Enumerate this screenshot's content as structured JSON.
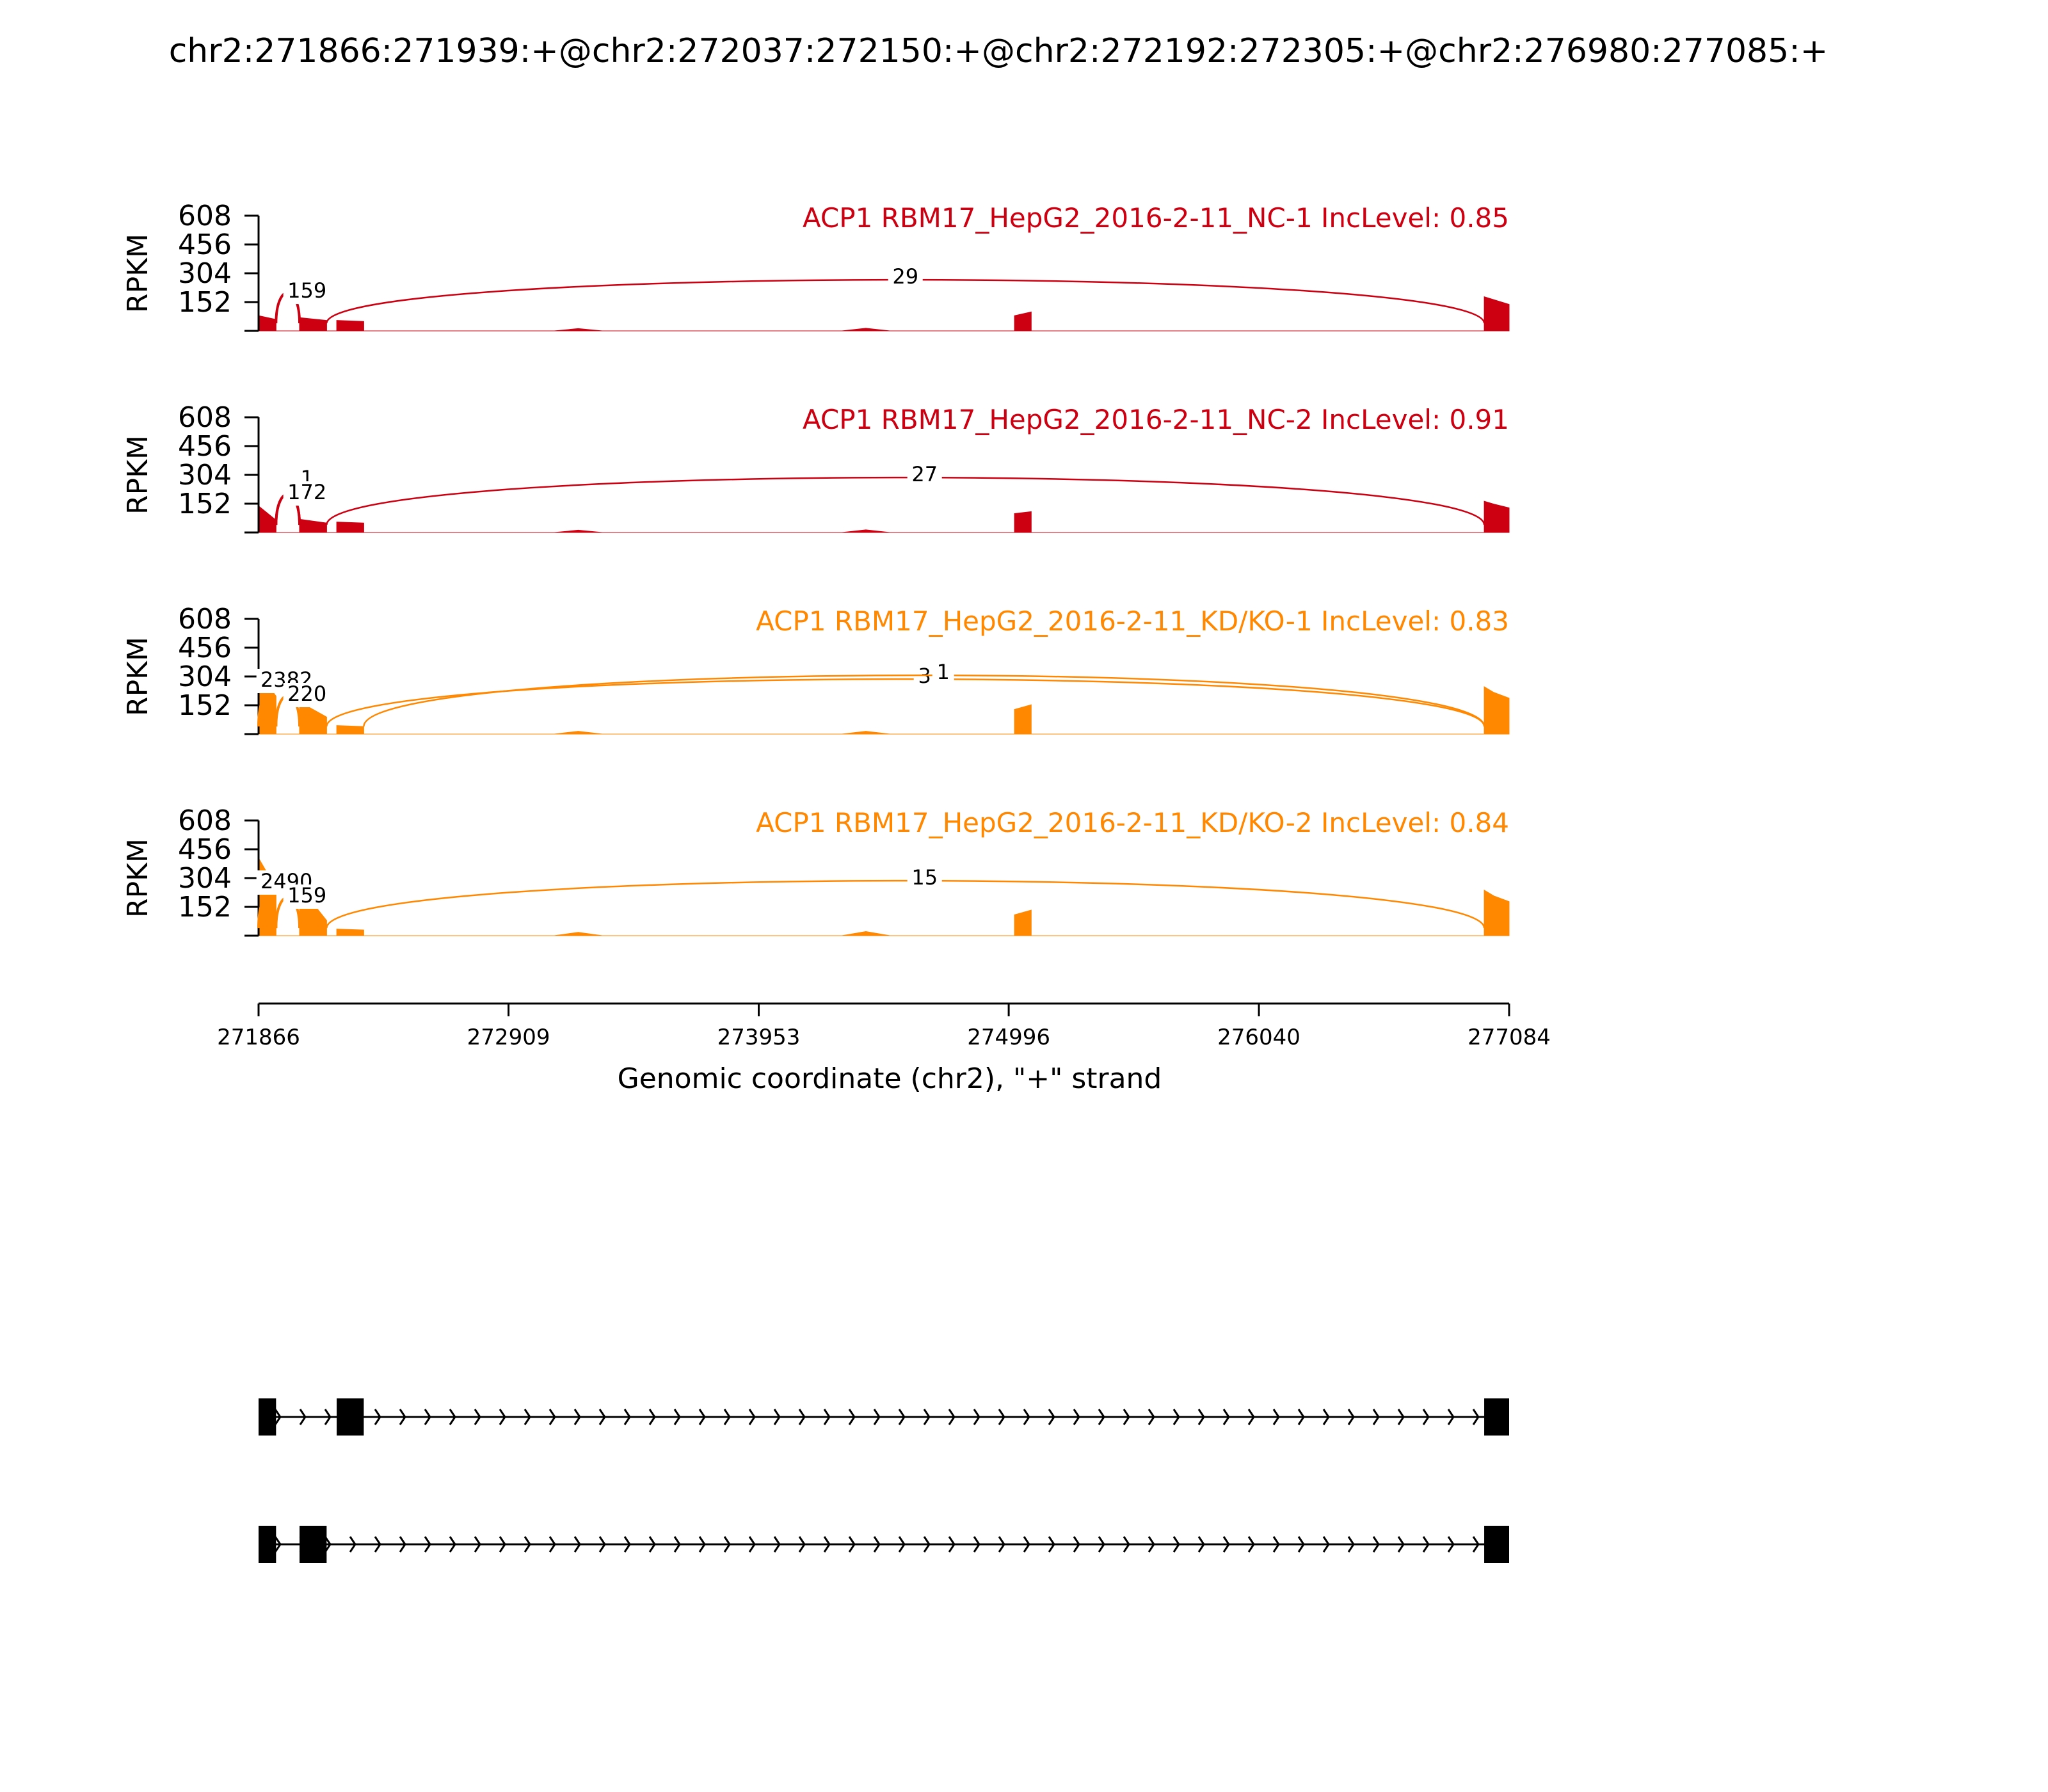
{
  "title": "chr2:271866:271939:+@chr2:272037:272150:+@chr2:272192:272305:+@chr2:276980:277085:+",
  "colors": {
    "nc": "#cc0011",
    "kd": "#ff8800",
    "gene": "#000000"
  },
  "chart_data": {
    "type": "sashimi",
    "x_range": [
      271866,
      277084
    ],
    "x_ticks": [
      271866,
      272909,
      273953,
      274996,
      276040,
      277084
    ],
    "xlabel": "Genomic coordinate (chr2), \"+\" strand",
    "ylabel": "RPKM",
    "y_ticks": [
      152,
      304,
      456,
      608
    ],
    "ylim": [
      0,
      608
    ],
    "samples": [
      {
        "title": "ACP1 RBM17_HepG2_2016-2-11_NC-1 IncLevel: 0.85",
        "group": "nc",
        "coverage": [
          [
            271866,
            80
          ],
          [
            271939,
            60
          ],
          [
            271939,
            0
          ],
          [
            272037,
            0
          ],
          [
            272037,
            70
          ],
          [
            272150,
            55
          ],
          [
            272150,
            0
          ],
          [
            272192,
            0
          ],
          [
            272192,
            55
          ],
          [
            272305,
            50
          ],
          [
            272305,
            0
          ],
          [
            273100,
            0
          ],
          [
            273200,
            12
          ],
          [
            273300,
            0
          ],
          [
            274300,
            0
          ],
          [
            274400,
            14
          ],
          [
            274500,
            0
          ],
          [
            275020,
            0
          ],
          [
            275020,
            80
          ],
          [
            275090,
            100
          ],
          [
            275090,
            0
          ],
          [
            276980,
            0
          ],
          [
            276980,
            180
          ],
          [
            277020,
            165
          ],
          [
            277084,
            140
          ]
        ],
        "junctions": [
          {
            "start": 271939,
            "end": 272037,
            "count": "159"
          },
          {
            "start": 272150,
            "end": 276980,
            "count": "29"
          }
        ]
      },
      {
        "title": "ACP1 RBM17_HepG2_2016-2-11_NC-2 IncLevel: 0.91",
        "group": "nc",
        "coverage": [
          [
            271866,
            140
          ],
          [
            271939,
            65
          ],
          [
            271939,
            0
          ],
          [
            272037,
            0
          ],
          [
            272037,
            70
          ],
          [
            272150,
            50
          ],
          [
            272150,
            0
          ],
          [
            272192,
            0
          ],
          [
            272192,
            55
          ],
          [
            272305,
            50
          ],
          [
            272305,
            0
          ],
          [
            273100,
            0
          ],
          [
            273200,
            12
          ],
          [
            273300,
            0
          ],
          [
            274300,
            0
          ],
          [
            274400,
            14
          ],
          [
            274500,
            0
          ],
          [
            275020,
            0
          ],
          [
            275020,
            100
          ],
          [
            275090,
            110
          ],
          [
            275090,
            0
          ],
          [
            276980,
            0
          ],
          [
            276980,
            165
          ],
          [
            277020,
            150
          ],
          [
            277084,
            130
          ]
        ],
        "junctions": [
          {
            "start": 271939,
            "end": 272037,
            "count": "1"
          },
          {
            "start": 271939,
            "end": 272037,
            "count": "172"
          },
          {
            "start": 272150,
            "end": 276980,
            "count": "27"
          }
        ]
      },
      {
        "title": "ACP1 RBM17_HepG2_2016-2-11_KD/KO-1 IncLevel: 0.83",
        "group": "kd",
        "coverage": [
          [
            271866,
            330
          ],
          [
            271939,
            200
          ],
          [
            271939,
            0
          ],
          [
            272037,
            0
          ],
          [
            272037,
            170
          ],
          [
            272150,
            90
          ],
          [
            272150,
            0
          ],
          [
            272192,
            0
          ],
          [
            272192,
            45
          ],
          [
            272305,
            40
          ],
          [
            272305,
            0
          ],
          [
            273100,
            0
          ],
          [
            273200,
            15
          ],
          [
            273300,
            0
          ],
          [
            274300,
            0
          ],
          [
            274400,
            15
          ],
          [
            274500,
            0
          ],
          [
            275020,
            0
          ],
          [
            275020,
            130
          ],
          [
            275090,
            155
          ],
          [
            275090,
            0
          ],
          [
            276980,
            0
          ],
          [
            276980,
            250
          ],
          [
            277020,
            220
          ],
          [
            277084,
            190
          ]
        ],
        "junctions": [
          {
            "start": 271866,
            "end": 271939,
            "count": "2382"
          },
          {
            "start": 271939,
            "end": 272037,
            "count": "220"
          },
          {
            "start": 272150,
            "end": 276980,
            "count": "3"
          },
          {
            "start": 272305,
            "end": 276980,
            "count": "1"
          }
        ]
      },
      {
        "title": "ACP1 RBM17_HepG2_2016-2-11_KD/KO-2 IncLevel: 0.84",
        "group": "kd",
        "coverage": [
          [
            271866,
            410
          ],
          [
            271939,
            250
          ],
          [
            271939,
            0
          ],
          [
            272037,
            0
          ],
          [
            272037,
            260
          ],
          [
            272150,
            80
          ],
          [
            272150,
            0
          ],
          [
            272192,
            0
          ],
          [
            272192,
            35
          ],
          [
            272305,
            30
          ],
          [
            272305,
            0
          ],
          [
            273100,
            0
          ],
          [
            273200,
            18
          ],
          [
            273300,
            0
          ],
          [
            274300,
            0
          ],
          [
            274400,
            22
          ],
          [
            274500,
            0
          ],
          [
            275020,
            0
          ],
          [
            275020,
            110
          ],
          [
            275090,
            135
          ],
          [
            275090,
            0
          ],
          [
            276980,
            0
          ],
          [
            276980,
            240
          ],
          [
            277020,
            210
          ],
          [
            277084,
            180
          ]
        ],
        "junctions": [
          {
            "start": 271866,
            "end": 271939,
            "count": "2490"
          },
          {
            "start": 271939,
            "end": 272037,
            "count": "159"
          },
          {
            "start": 272150,
            "end": 276980,
            "count": "15"
          }
        ]
      }
    ],
    "transcripts": [
      {
        "exons": [
          [
            271866,
            271939
          ],
          [
            272192,
            272305
          ],
          [
            276980,
            277084
          ]
        ]
      },
      {
        "exons": [
          [
            271866,
            271939
          ],
          [
            272037,
            272150
          ],
          [
            276980,
            277084
          ]
        ]
      }
    ]
  }
}
